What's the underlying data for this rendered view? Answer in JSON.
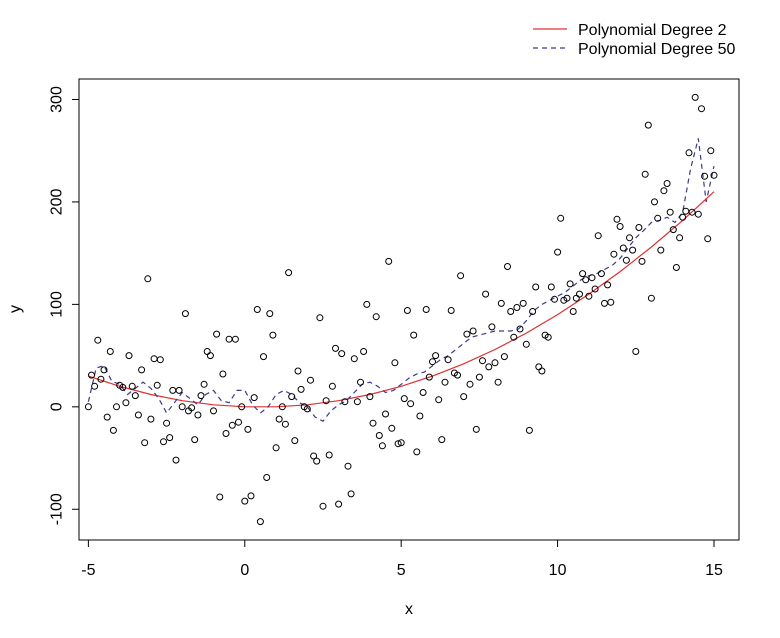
{
  "chart_data": {
    "type": "scatter",
    "title": "",
    "xlabel": "x",
    "ylabel": "y",
    "xlim": [
      -5.3,
      15.8
    ],
    "ylim": [
      -130,
      320
    ],
    "xticks": [
      -5,
      0,
      5,
      10,
      15
    ],
    "xtick_labels": [
      "-5",
      "0",
      "5",
      "10",
      "15"
    ],
    "yticks": [
      -100,
      0,
      100,
      200,
      300
    ],
    "ytick_labels": [
      "-100",
      "0",
      "100",
      "200",
      "300"
    ],
    "ytick_label_colors": [
      "#cc0000",
      "#000000",
      "#000000",
      "#000000",
      "#000000"
    ],
    "legend": {
      "position": "top-right",
      "entries": [
        {
          "label": "Polynomial Degree 2",
          "color": "#e03030",
          "style": "solid"
        },
        {
          "label": "Polynomial Degree 50",
          "color": "#3a3a8c",
          "style": "dashed"
        }
      ]
    },
    "series": [
      {
        "kind": "points",
        "marker": "open-circle",
        "color": "#000000",
        "points": [
          [
            -5.0,
            0
          ],
          [
            -4.9,
            31
          ],
          [
            -4.8,
            20
          ],
          [
            -4.7,
            65
          ],
          [
            -4.6,
            27
          ],
          [
            -4.5,
            36
          ],
          [
            -4.4,
            -10
          ],
          [
            -4.3,
            54
          ],
          [
            -4.2,
            -23
          ],
          [
            -4.1,
            0
          ],
          [
            -4.0,
            21
          ],
          [
            -3.9,
            19
          ],
          [
            -3.8,
            4
          ],
          [
            -3.7,
            50
          ],
          [
            -3.6,
            20
          ],
          [
            -3.5,
            11
          ],
          [
            -3.4,
            -8
          ],
          [
            -3.3,
            36
          ],
          [
            -3.2,
            -35
          ],
          [
            -3.1,
            125
          ],
          [
            -3.0,
            -12
          ],
          [
            -2.9,
            47
          ],
          [
            -2.8,
            21
          ],
          [
            -2.7,
            46
          ],
          [
            -2.6,
            -34
          ],
          [
            -2.5,
            -16
          ],
          [
            -2.4,
            -30
          ],
          [
            -2.3,
            16
          ],
          [
            -2.2,
            -52
          ],
          [
            -2.1,
            16
          ],
          [
            -2.0,
            0
          ],
          [
            -1.9,
            91
          ],
          [
            -1.8,
            -4
          ],
          [
            -1.7,
            -1
          ],
          [
            -1.6,
            -32
          ],
          [
            -1.5,
            -8
          ],
          [
            -1.4,
            11
          ],
          [
            -1.3,
            22
          ],
          [
            -1.2,
            54
          ],
          [
            -1.1,
            50
          ],
          [
            -1.0,
            -4
          ],
          [
            -0.9,
            71
          ],
          [
            -0.8,
            -88
          ],
          [
            -0.7,
            32
          ],
          [
            -0.6,
            -26
          ],
          [
            -0.5,
            66
          ],
          [
            -0.4,
            -18
          ],
          [
            -0.3,
            66
          ],
          [
            -0.2,
            -15
          ],
          [
            -0.1,
            0
          ],
          [
            0.0,
            -92
          ],
          [
            0.1,
            -22
          ],
          [
            0.2,
            -87
          ],
          [
            0.3,
            9
          ],
          [
            0.4,
            95
          ],
          [
            0.5,
            -112
          ],
          [
            0.6,
            49
          ],
          [
            0.7,
            -69
          ],
          [
            0.8,
            91
          ],
          [
            0.9,
            70
          ],
          [
            1.0,
            -40
          ],
          [
            1.1,
            -12
          ],
          [
            1.2,
            0
          ],
          [
            1.3,
            -17
          ],
          [
            1.4,
            131
          ],
          [
            1.5,
            10
          ],
          [
            1.6,
            -33
          ],
          [
            1.7,
            35
          ],
          [
            1.8,
            17
          ],
          [
            1.9,
            0
          ],
          [
            2.0,
            -2
          ],
          [
            2.1,
            26
          ],
          [
            2.2,
            -48
          ],
          [
            2.3,
            -53
          ],
          [
            2.4,
            87
          ],
          [
            2.5,
            -97
          ],
          [
            2.6,
            6
          ],
          [
            2.7,
            -47
          ],
          [
            2.8,
            20
          ],
          [
            2.9,
            57
          ],
          [
            3.0,
            -95
          ],
          [
            3.1,
            52
          ],
          [
            3.2,
            5
          ],
          [
            3.3,
            -58
          ],
          [
            3.4,
            -85
          ],
          [
            3.5,
            47
          ],
          [
            3.6,
            5
          ],
          [
            3.7,
            24
          ],
          [
            3.8,
            54
          ],
          [
            3.9,
            100
          ],
          [
            4.0,
            10
          ],
          [
            4.1,
            -16
          ],
          [
            4.2,
            88
          ],
          [
            4.3,
            -28
          ],
          [
            4.4,
            -38
          ],
          [
            4.5,
            -7
          ],
          [
            4.6,
            142
          ],
          [
            4.7,
            -21
          ],
          [
            4.8,
            43
          ],
          [
            4.9,
            -36
          ],
          [
            5.0,
            -35
          ],
          [
            5.1,
            8
          ],
          [
            5.2,
            94
          ],
          [
            5.3,
            3
          ],
          [
            5.4,
            70
          ],
          [
            5.5,
            -44
          ],
          [
            5.6,
            -9
          ],
          [
            5.7,
            14
          ],
          [
            5.8,
            95
          ],
          [
            5.9,
            29
          ],
          [
            6.0,
            44
          ],
          [
            6.1,
            50
          ],
          [
            6.2,
            7
          ],
          [
            6.3,
            -32
          ],
          [
            6.4,
            24
          ],
          [
            6.5,
            46
          ],
          [
            6.6,
            94
          ],
          [
            6.7,
            33
          ],
          [
            6.8,
            31
          ],
          [
            6.9,
            128
          ],
          [
            7.0,
            10
          ],
          [
            7.1,
            71
          ],
          [
            7.2,
            22
          ],
          [
            7.3,
            74
          ],
          [
            7.4,
            -22
          ],
          [
            7.5,
            29
          ],
          [
            7.6,
            45
          ],
          [
            7.7,
            110
          ],
          [
            7.8,
            39
          ],
          [
            7.9,
            78
          ],
          [
            8.0,
            43
          ],
          [
            8.1,
            24
          ],
          [
            8.2,
            101
          ],
          [
            8.3,
            49
          ],
          [
            8.4,
            137
          ],
          [
            8.5,
            93
          ],
          [
            8.6,
            68
          ],
          [
            8.7,
            97
          ],
          [
            8.8,
            76
          ],
          [
            8.9,
            101
          ],
          [
            9.0,
            61
          ],
          [
            9.1,
            -23
          ],
          [
            9.2,
            93
          ],
          [
            9.3,
            117
          ],
          [
            9.4,
            39
          ],
          [
            9.5,
            35
          ],
          [
            9.6,
            70
          ],
          [
            9.7,
            68
          ],
          [
            9.8,
            117
          ],
          [
            9.9,
            105
          ],
          [
            10.0,
            151
          ],
          [
            10.1,
            184
          ],
          [
            10.2,
            104
          ],
          [
            10.3,
            106
          ],
          [
            10.4,
            120
          ],
          [
            10.5,
            93
          ],
          [
            10.6,
            106
          ],
          [
            10.7,
            110
          ],
          [
            10.8,
            130
          ],
          [
            10.9,
            124
          ],
          [
            11.0,
            108
          ],
          [
            11.1,
            126
          ],
          [
            11.2,
            115
          ],
          [
            11.3,
            167
          ],
          [
            11.4,
            130
          ],
          [
            11.5,
            101
          ],
          [
            11.6,
            119
          ],
          [
            11.7,
            102
          ],
          [
            11.8,
            149
          ],
          [
            11.9,
            183
          ],
          [
            12.0,
            176
          ],
          [
            12.1,
            155
          ],
          [
            12.2,
            143
          ],
          [
            12.3,
            165
          ],
          [
            12.4,
            153
          ],
          [
            12.5,
            54
          ],
          [
            12.6,
            175
          ],
          [
            12.7,
            142
          ],
          [
            12.8,
            227
          ],
          [
            12.9,
            275
          ],
          [
            13.0,
            106
          ],
          [
            13.1,
            200
          ],
          [
            13.2,
            184
          ],
          [
            13.3,
            153
          ],
          [
            13.4,
            211
          ],
          [
            13.5,
            218
          ],
          [
            13.6,
            190
          ],
          [
            13.7,
            173
          ],
          [
            13.8,
            136
          ],
          [
            13.9,
            165
          ],
          [
            14.0,
            185
          ],
          [
            14.1,
            191
          ],
          [
            14.2,
            248
          ],
          [
            14.3,
            190
          ],
          [
            14.4,
            302
          ],
          [
            14.5,
            188
          ],
          [
            14.6,
            291
          ],
          [
            14.7,
            225
          ],
          [
            14.8,
            164
          ],
          [
            14.9,
            250
          ],
          [
            15.0,
            226
          ]
        ]
      },
      {
        "kind": "line",
        "name": "Polynomial Degree 2",
        "color": "#e03030",
        "style": "solid",
        "x": [
          -5,
          -4,
          -3,
          -2,
          -1,
          0,
          1,
          2,
          3,
          4,
          5,
          6,
          7,
          8,
          9,
          10,
          11,
          12,
          13,
          14,
          15
        ],
        "values": [
          30,
          20,
          12,
          6,
          2,
          0,
          0,
          2,
          6,
          12,
          20,
          30,
          42,
          56,
          72,
          90,
          110,
          132,
          156,
          182,
          210
        ]
      },
      {
        "kind": "line",
        "name": "Polynomial Degree 50",
        "color": "#3a3a8c",
        "style": "dashed",
        "x": [
          -5.0,
          -4.75,
          -4.5,
          -4.25,
          -4.0,
          -3.75,
          -3.5,
          -3.25,
          -3.0,
          -2.75,
          -2.5,
          -2.25,
          -2.0,
          -1.75,
          -1.5,
          -1.25,
          -1.0,
          -0.75,
          -0.5,
          -0.25,
          0.0,
          0.25,
          0.5,
          0.75,
          1.0,
          1.25,
          1.5,
          1.75,
          2.0,
          2.25,
          2.5,
          2.75,
          3.0,
          3.25,
          3.5,
          3.75,
          4.0,
          4.25,
          4.5,
          4.75,
          5.0,
          5.25,
          5.5,
          5.75,
          6.0,
          6.25,
          6.5,
          6.75,
          7.0,
          7.25,
          7.5,
          7.75,
          8.0,
          8.25,
          8.5,
          8.75,
          9.0,
          9.25,
          9.5,
          9.75,
          10.0,
          10.25,
          10.5,
          10.75,
          11.0,
          11.25,
          11.5,
          11.75,
          12.0,
          12.25,
          12.5,
          12.75,
          13.0,
          13.25,
          13.5,
          13.75,
          14.0,
          14.25,
          14.5,
          14.75,
          15.0
        ],
        "values": [
          5,
          38,
          40,
          25,
          22,
          12,
          18,
          24,
          18,
          8,
          -6,
          4,
          14,
          8,
          2,
          12,
          16,
          6,
          4,
          16,
          16,
          2,
          -6,
          0,
          12,
          16,
          12,
          4,
          0,
          -10,
          -14,
          -4,
          2,
          6,
          14,
          22,
          24,
          20,
          14,
          16,
          22,
          28,
          32,
          34,
          40,
          46,
          50,
          56,
          62,
          68,
          70,
          72,
          74,
          74,
          74,
          76,
          84,
          94,
          100,
          104,
          108,
          112,
          118,
          124,
          128,
          130,
          134,
          138,
          145,
          155,
          165,
          172,
          180,
          182,
          185,
          180,
          190,
          232,
          262,
          200,
          235
        ]
      }
    ]
  }
}
